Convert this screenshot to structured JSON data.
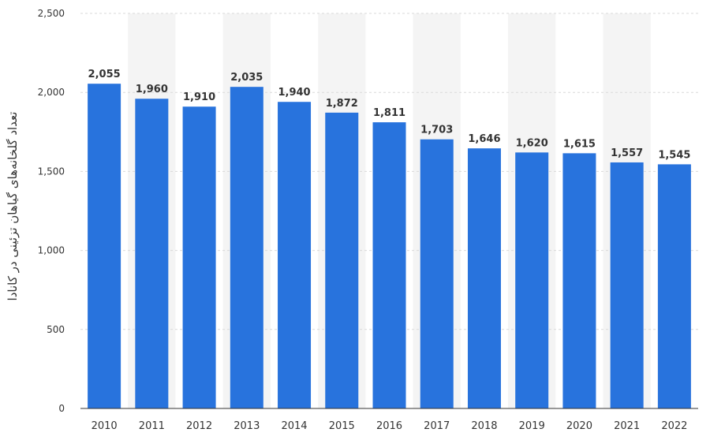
{
  "chart_data": {
    "type": "bar",
    "ylabel": "تعداد گلخانه‌های گیاهان تزئینی در کانادا",
    "xlabel": "",
    "categories": [
      "2010",
      "2011",
      "2012",
      "2013",
      "2014",
      "2015",
      "2016",
      "2017",
      "2018",
      "2019",
      "2020",
      "2021",
      "2022"
    ],
    "values": [
      2055,
      1960,
      1910,
      2035,
      1940,
      1872,
      1811,
      1703,
      1646,
      1620,
      1615,
      1557,
      1545
    ],
    "value_labels": [
      "2,055",
      "1,960",
      "1,910",
      "2,035",
      "1,940",
      "1,872",
      "1,811",
      "1,703",
      "1,646",
      "1,620",
      "1,615",
      "1,557",
      "1,545"
    ],
    "ylim": [
      0,
      2500
    ],
    "yticks": [
      0,
      500,
      1000,
      1500,
      2000,
      2500
    ],
    "ytick_labels": [
      "0",
      "500",
      "1,000",
      "1,500",
      "2,000",
      "2,500"
    ],
    "grid": true,
    "colors": {
      "bar": "#2873DD",
      "band": "#F4F4F4",
      "grid": "#D9D9D9",
      "axis": "#333333"
    }
  }
}
